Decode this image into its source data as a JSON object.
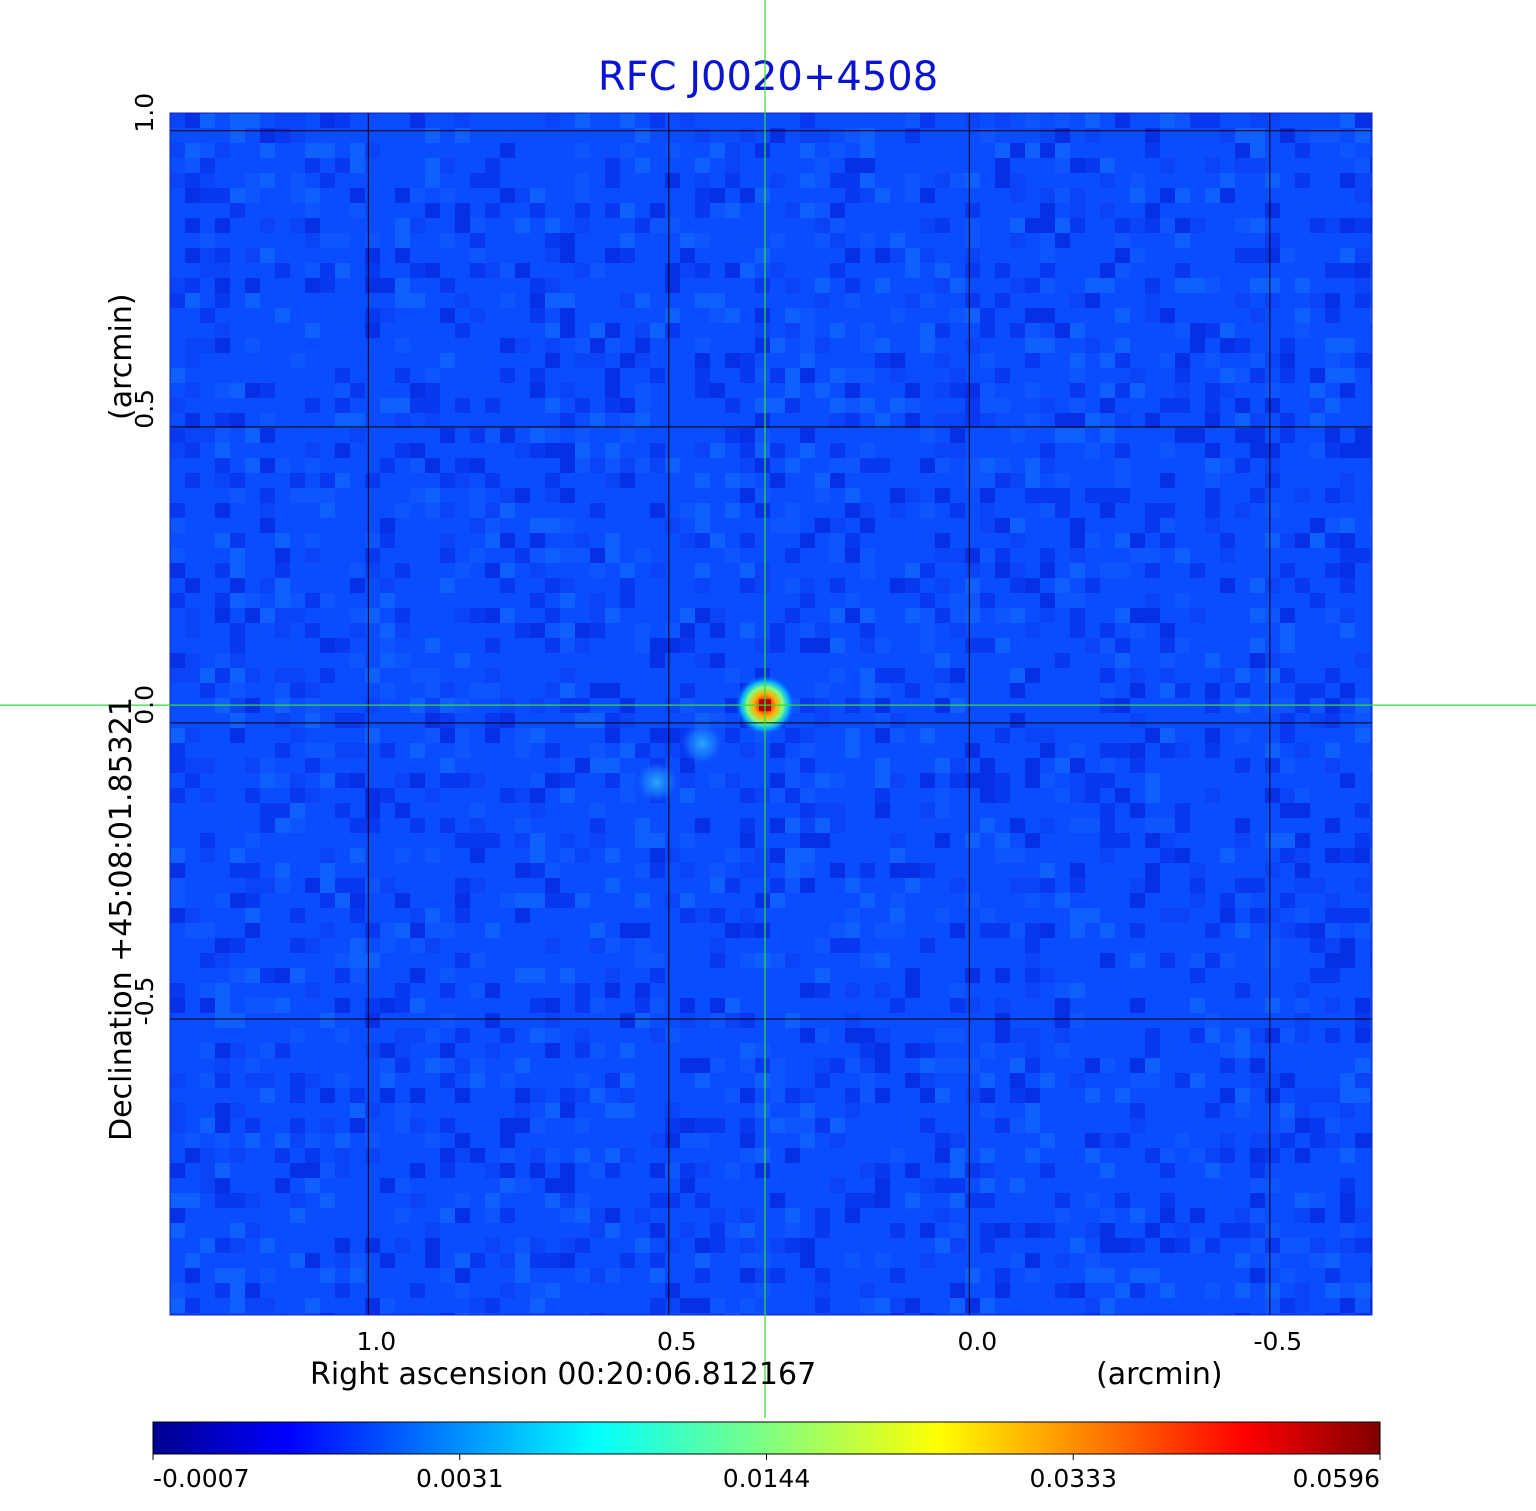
{
  "chart_data": {
    "type": "heatmap",
    "title": "RFC J0020+4508",
    "xlabel": "Right ascension  00:20:06.812167",
    "xunit": "(arcmin)",
    "ylabel": "Declination  +45:08:01.85321",
    "yunit": "(arcmin)",
    "xlim": [
      1.33,
      -0.67
    ],
    "ylim": [
      -1.0,
      1.03
    ],
    "x_ticks": [
      "1.0",
      "0.5",
      "0.0",
      "-0.5"
    ],
    "x_tick_values": [
      1.0,
      0.5,
      0.0,
      -0.5
    ],
    "y_ticks": [
      "-0.5",
      "0.0",
      "0.5",
      "1.0"
    ],
    "y_tick_values": [
      -0.5,
      0.0,
      0.5,
      1.0
    ],
    "grid": true,
    "crosshair": {
      "x": 0.34,
      "y": 0.03
    },
    "colorbar": {
      "colormap": "jet",
      "tick_labels": [
        "-0.0007",
        "0.0031",
        "0.0144",
        "0.0333",
        "0.0596"
      ],
      "min": -0.0007,
      "max": 0.0596
    },
    "sources": [
      {
        "x": 0.34,
        "y": 0.03,
        "peak": 0.0596
      },
      {
        "x": 0.445,
        "y": -0.035,
        "peak": 0.006
      },
      {
        "x": 0.52,
        "y": -0.1,
        "peak": 0.005
      }
    ],
    "colors": {
      "title": "#0a14d2",
      "crosshair": "#33dd33",
      "grid": "#000000"
    }
  }
}
